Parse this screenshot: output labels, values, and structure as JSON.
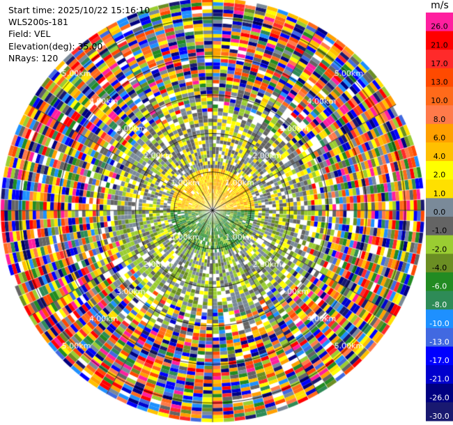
{
  "header": {
    "start_time": "Start time: 2025/10/22 15:16:10",
    "instrument": "WLS200s-181",
    "field": "Field: VEL",
    "elevation": "Elevation(deg): 35.00",
    "nrays": "NRays: 120"
  },
  "colorbar": {
    "unit": "m/s",
    "entries": [
      {
        "label": "26.0",
        "color": "#ff1f9f"
      },
      {
        "label": "21.0",
        "color": "#ff0000"
      },
      {
        "label": "17.0",
        "color": "#ff2a2a"
      },
      {
        "label": "13.0",
        "color": "#ff4a00"
      },
      {
        "label": "10.0",
        "color": "#ff6a1a"
      },
      {
        "label": "8.0",
        "color": "#ff7a4a"
      },
      {
        "label": "6.0",
        "color": "#ffa000"
      },
      {
        "label": "4.0",
        "color": "#ffc000"
      },
      {
        "label": "2.0",
        "color": "#ffff00"
      },
      {
        "label": "1.0",
        "color": "#ffe000"
      },
      {
        "label": "0.0",
        "color": "#7a8a99"
      },
      {
        "label": "-1.0",
        "color": "#646464"
      },
      {
        "label": "-2.0",
        "color": "#9acd32"
      },
      {
        "label": "-4.0",
        "color": "#6b8e23"
      },
      {
        "label": "-6.0",
        "color": "#228b22"
      },
      {
        "label": "-8.0",
        "color": "#2e8b57"
      },
      {
        "label": "-10.0",
        "color": "#1e90ff"
      },
      {
        "label": "-13.0",
        "color": "#4169e1"
      },
      {
        "label": "-17.0",
        "color": "#0000ff"
      },
      {
        "label": "-21.0",
        "color": "#0000cd"
      },
      {
        "label": "-26.0",
        "color": "#000080"
      },
      {
        "label": "-30.0",
        "color": "#191970"
      }
    ]
  },
  "chart_data": {
    "type": "heatmap",
    "subtype": "polar PPI",
    "field": "VEL",
    "elevation_deg": 35.0,
    "n_rays": 120,
    "range_rings_km": [
      1.0,
      2.0,
      3.0,
      4.0,
      5.0
    ],
    "ring_label_suffix": "km",
    "ring_labels": [
      "1.00km",
      "2.00km",
      "3.00km",
      "4.00km",
      "5.00km"
    ],
    "max_range_km": 5.5,
    "spokes_deg": [
      0,
      30,
      60,
      90,
      120,
      150,
      180,
      210,
      240,
      270,
      300,
      330
    ],
    "pattern": {
      "inner_north_half_0_1km": "positive 1-6 m/s (yellow/orange)",
      "inner_south_half_0_1km": "negative -2 to -8 m/s (green)",
      "ring_1_to_2_5km": "mostly near zero (grey/light green) with scattered yellow",
      "beyond_3km": "noisy, random values across full -30..26 m/s range"
    }
  }
}
